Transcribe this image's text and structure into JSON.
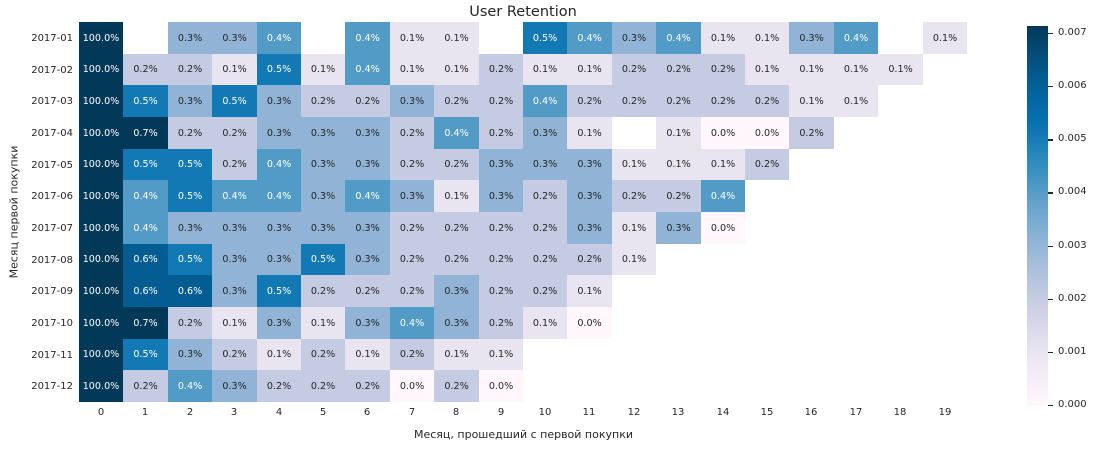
{
  "chart_data": {
    "type": "heatmap",
    "title": "User Retention",
    "xlabel": "Месяц, прошедший с первой покупки",
    "ylabel": "Месяц первой покупки",
    "x_ticks": [
      "0",
      "1",
      "2",
      "3",
      "4",
      "5",
      "6",
      "7",
      "8",
      "9",
      "10",
      "11",
      "12",
      "13",
      "14",
      "15",
      "16",
      "17",
      "18",
      "19"
    ],
    "y_ticks": [
      "2017-01",
      "2017-02",
      "2017-03",
      "2017-04",
      "2017-05",
      "2017-06",
      "2017-07",
      "2017-08",
      "2017-09",
      "2017-10",
      "2017-11",
      "2017-12"
    ],
    "values_percent": [
      [
        100.0,
        null,
        0.3,
        0.3,
        0.4,
        null,
        0.4,
        0.1,
        0.1,
        null,
        0.5,
        0.4,
        0.3,
        0.4,
        0.1,
        0.1,
        0.3,
        0.4,
        null,
        0.1
      ],
      [
        100.0,
        0.2,
        0.2,
        0.1,
        0.5,
        0.1,
        0.4,
        0.1,
        0.1,
        0.2,
        0.1,
        0.1,
        0.2,
        0.2,
        0.2,
        0.1,
        0.1,
        0.1,
        0.1,
        null
      ],
      [
        100.0,
        0.5,
        0.3,
        0.5,
        0.3,
        0.2,
        0.2,
        0.3,
        0.2,
        0.2,
        0.4,
        0.2,
        0.2,
        0.2,
        0.2,
        0.2,
        0.1,
        0.1,
        null,
        null
      ],
      [
        100.0,
        0.7,
        0.2,
        0.2,
        0.3,
        0.3,
        0.3,
        0.2,
        0.4,
        0.2,
        0.3,
        0.1,
        null,
        0.1,
        0.0,
        0.0,
        0.2,
        null,
        null,
        null
      ],
      [
        100.0,
        0.5,
        0.5,
        0.2,
        0.4,
        0.3,
        0.3,
        0.2,
        0.2,
        0.3,
        0.3,
        0.3,
        0.1,
        0.1,
        0.1,
        0.2,
        null,
        null,
        null,
        null
      ],
      [
        100.0,
        0.4,
        0.5,
        0.4,
        0.4,
        0.3,
        0.4,
        0.3,
        0.1,
        0.3,
        0.2,
        0.3,
        0.2,
        0.2,
        0.4,
        null,
        null,
        null,
        null,
        null
      ],
      [
        100.0,
        0.4,
        0.3,
        0.3,
        0.3,
        0.3,
        0.3,
        0.2,
        0.2,
        0.2,
        0.2,
        0.3,
        0.1,
        0.3,
        0.0,
        null,
        null,
        null,
        null,
        null
      ],
      [
        100.0,
        0.6,
        0.5,
        0.3,
        0.3,
        0.5,
        0.3,
        0.2,
        0.2,
        0.2,
        0.2,
        0.2,
        0.1,
        null,
        null,
        null,
        null,
        null,
        null,
        null
      ],
      [
        100.0,
        0.6,
        0.6,
        0.3,
        0.5,
        0.2,
        0.2,
        0.2,
        0.3,
        0.2,
        0.2,
        0.1,
        null,
        null,
        null,
        null,
        null,
        null,
        null,
        null
      ],
      [
        100.0,
        0.7,
        0.2,
        0.1,
        0.3,
        0.1,
        0.3,
        0.4,
        0.3,
        0.2,
        0.1,
        0.0,
        null,
        null,
        null,
        null,
        null,
        null,
        null,
        null
      ],
      [
        100.0,
        0.5,
        0.3,
        0.2,
        0.1,
        0.2,
        0.1,
        0.2,
        0.1,
        0.1,
        null,
        null,
        null,
        null,
        null,
        null,
        null,
        null,
        null,
        null
      ],
      [
        100.0,
        0.2,
        0.4,
        0.3,
        0.2,
        0.2,
        0.2,
        0.0,
        0.2,
        0.0,
        null,
        null,
        null,
        null,
        null,
        null,
        null,
        null,
        null,
        null
      ]
    ],
    "colorbar": {
      "ticks": [
        "0.007",
        "0.006",
        "0.005",
        "0.004",
        "0.003",
        "0.002",
        "0.001",
        "0.000"
      ],
      "vmin": 0.0,
      "vmax": 0.007
    },
    "colormap": {
      "name": "PuBu",
      "anchors": [
        "#fff7fb",
        "#ece7f2",
        "#d0d1e6",
        "#a6bddb",
        "#74a9cf",
        "#3690c0",
        "#0570b0",
        "#045a8d",
        "#023858"
      ]
    },
    "colors": {
      "annotation_light": "#ffffff",
      "annotation_dark": "#262626",
      "max_cell": "#023858",
      "background": "#ffffff"
    }
  }
}
